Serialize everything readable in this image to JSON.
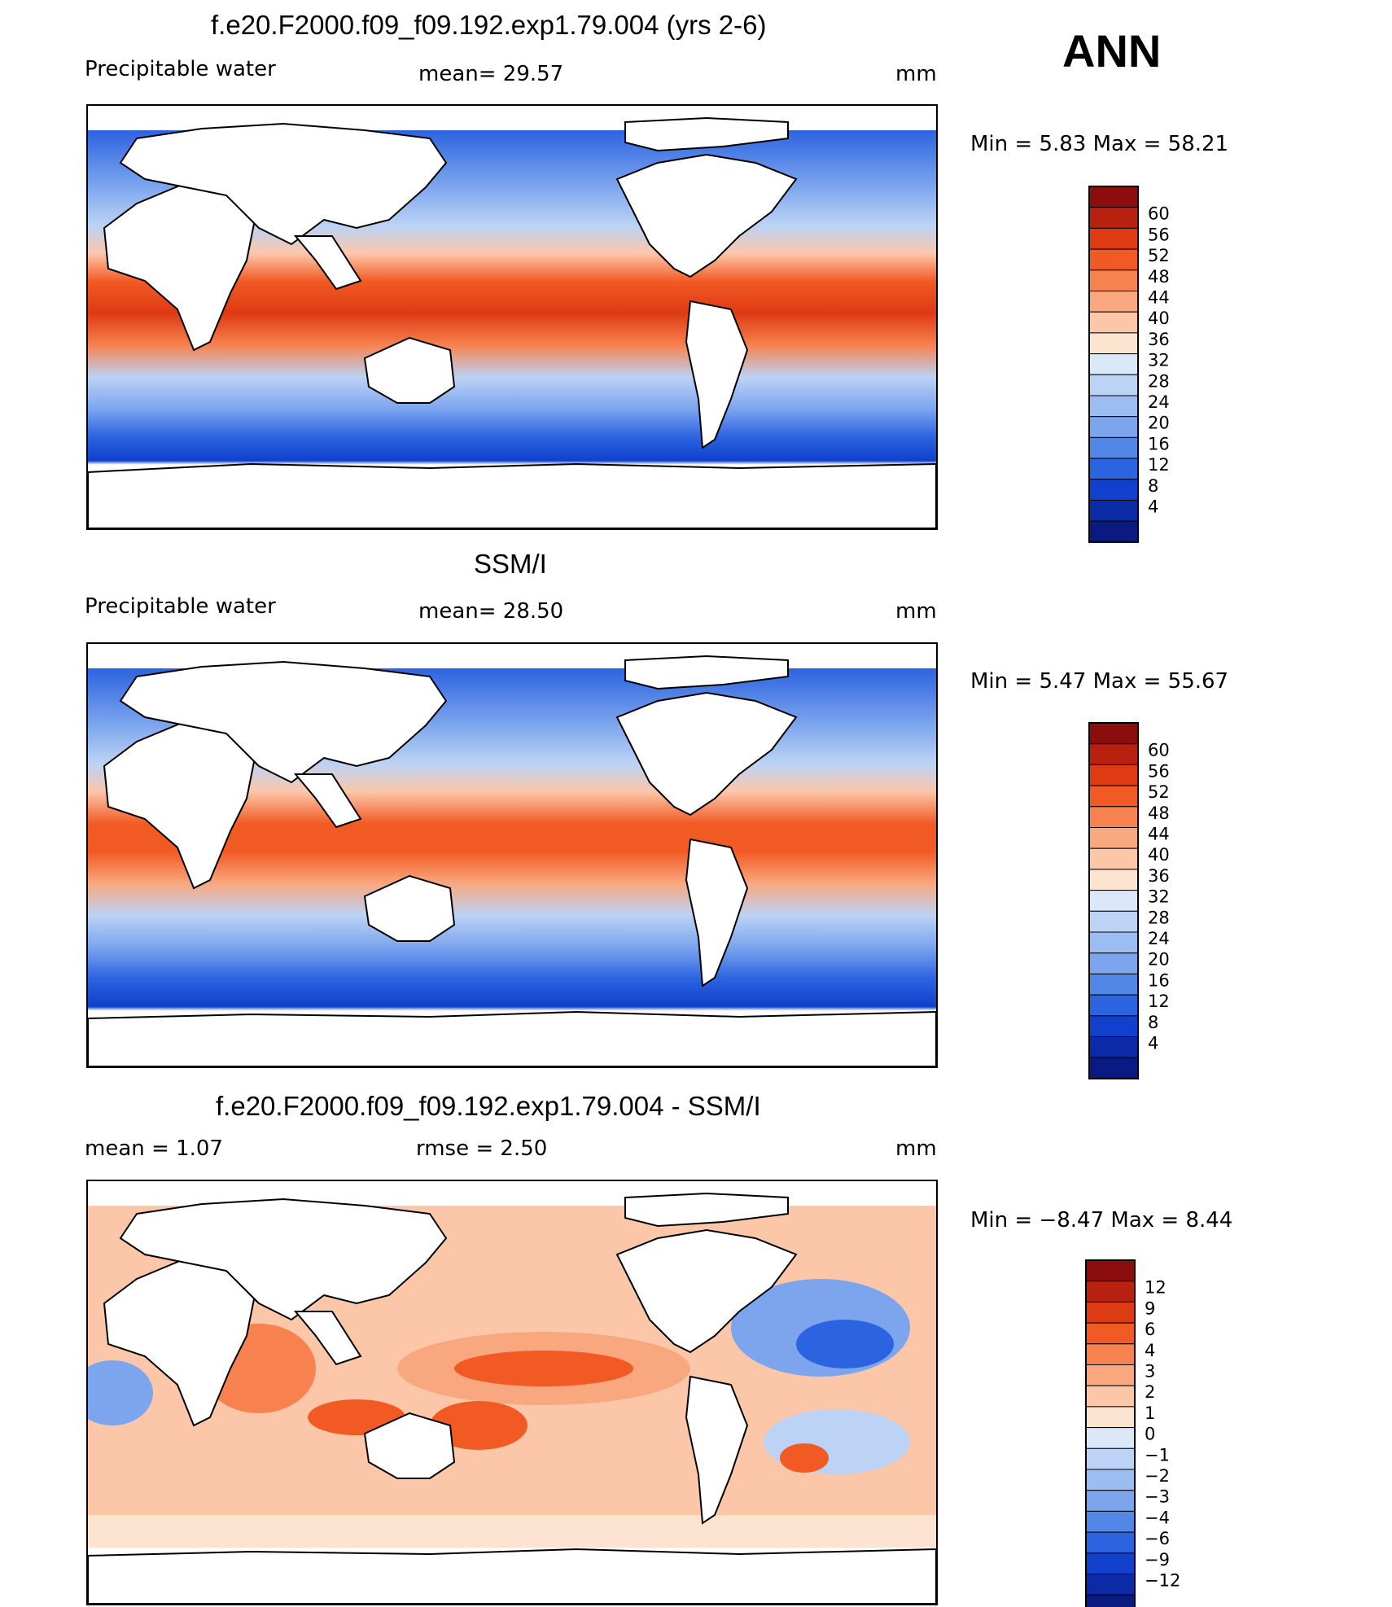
{
  "season": "ANN",
  "panels": [
    {
      "title": "f.e20.F2000.f09_f09.192.exp1.79.004 (yrs 2-6)",
      "left_label": "Precipitable  water",
      "mid_label": "mean=   29.57",
      "unit": "mm",
      "minmax": "Min  =      5.83  Max  =     58.21",
      "colorbar_labels": [
        "60",
        "56",
        "52",
        "48",
        "44",
        "40",
        "36",
        "32",
        "28",
        "24",
        "20",
        "16",
        "12",
        "8",
        "4"
      ],
      "colors": [
        "#8b0d0d",
        "#b8210f",
        "#de3a14",
        "#f25a24",
        "#f7824f",
        "#f9a77f",
        "#fcc6a9",
        "#fde4d1",
        "#dbe8f8",
        "#bcd3f5",
        "#9cbdf2",
        "#7ca5ee",
        "#5287e8",
        "#2c63e0",
        "#1040cc",
        "#0a2aa6",
        "#0a1a80"
      ]
    },
    {
      "title": "SSM/I",
      "left_label": "Precipitable  water",
      "mid_label": "mean=   28.50",
      "unit": "mm",
      "minmax": "Min  =      5.47  Max  =     55.67",
      "colorbar_labels": [
        "60",
        "56",
        "52",
        "48",
        "44",
        "40",
        "36",
        "32",
        "28",
        "24",
        "20",
        "16",
        "12",
        "8",
        "4"
      ],
      "colors": [
        "#8b0d0d",
        "#b8210f",
        "#de3a14",
        "#f25a24",
        "#f7824f",
        "#f9a77f",
        "#fcc6a9",
        "#fde4d1",
        "#dbe8f8",
        "#bcd3f5",
        "#9cbdf2",
        "#7ca5ee",
        "#5287e8",
        "#2c63e0",
        "#1040cc",
        "#0a2aa6",
        "#0a1a80"
      ]
    },
    {
      "title": "f.e20.F2000.f09_f09.192.exp1.79.004 - SSM/I",
      "left_label": "mean  =      1.07",
      "mid_label": "rmse  =      2.50",
      "unit": "mm",
      "minmax": "Min  =    −8.47  Max  =        8.44",
      "colorbar_labels": [
        "12",
        "9",
        "6",
        "4",
        "3",
        "2",
        "1",
        "0",
        "−1",
        "−2",
        "−3",
        "−4",
        "−6",
        "−9",
        "−12"
      ],
      "colors": [
        "#8b0d0d",
        "#b8210f",
        "#de3a14",
        "#f25a24",
        "#f7824f",
        "#f9a77f",
        "#fcc6a9",
        "#fde4d1",
        "#dbe8f8",
        "#bcd3f5",
        "#9cbdf2",
        "#7ca5ee",
        "#5287e8",
        "#2c63e0",
        "#1040cc",
        "#0a2aa6",
        "#0a1a80"
      ]
    }
  ]
}
